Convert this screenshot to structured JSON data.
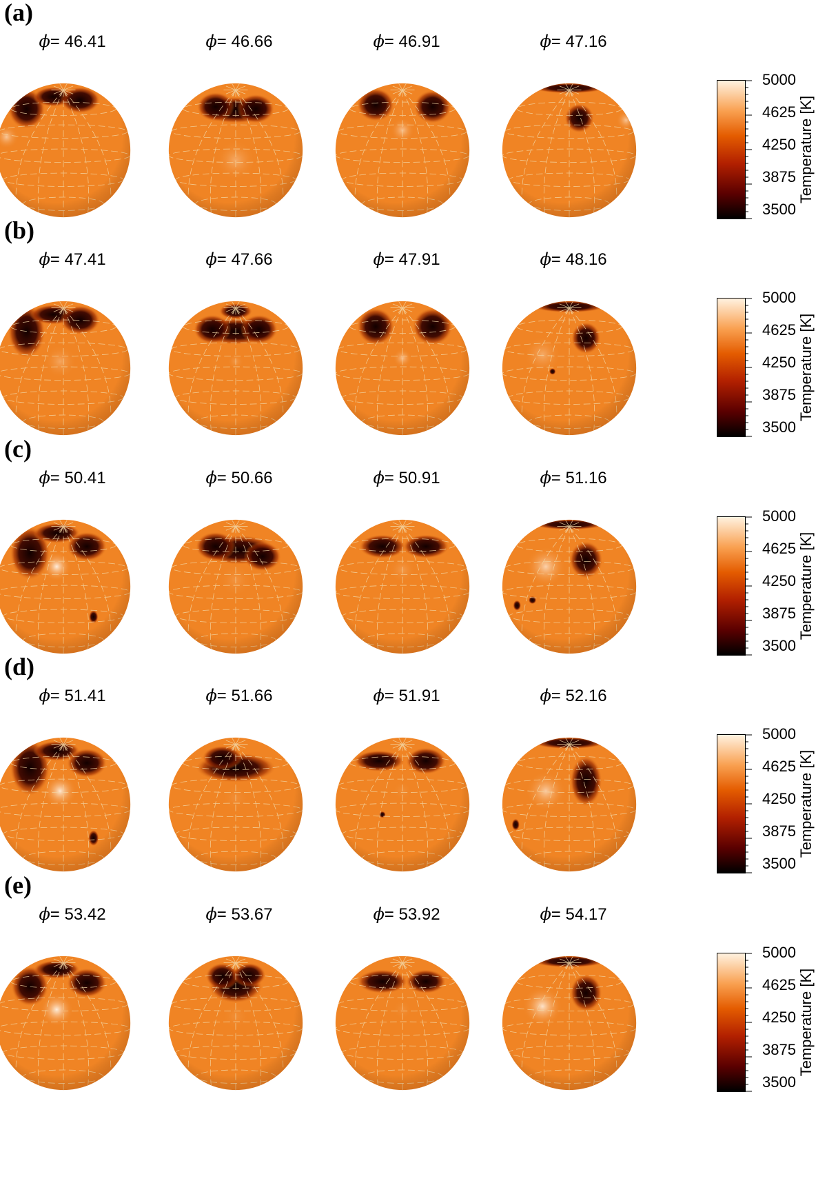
{
  "figure": {
    "panels": [
      {
        "label": "(a)",
        "phases": [
          "46.41",
          "46.66",
          "46.91",
          "47.16"
        ]
      },
      {
        "label": "(b)",
        "phases": [
          "47.41",
          "47.66",
          "47.91",
          "48.16"
        ]
      },
      {
        "label": "(c)",
        "phases": [
          "50.41",
          "50.66",
          "50.91",
          "51.16"
        ]
      },
      {
        "label": "(d)",
        "phases": [
          "51.41",
          "51.66",
          "51.91",
          "52.16"
        ]
      },
      {
        "label": "(e)",
        "phases": [
          "53.42",
          "53.67",
          "53.92",
          "54.17"
        ]
      }
    ],
    "phase_symbol": "ϕ",
    "phase_separator": "= ",
    "colorbar": {
      "title": "Temperature [K]",
      "ticks": [
        "5000",
        "4625",
        "4250",
        "3875",
        "3500"
      ],
      "range": [
        3500,
        5000
      ]
    },
    "colors": {
      "photosphere": "#f08424",
      "spot_cold": "#120000",
      "hot_region": "#fff3e6",
      "grid_line": "#f2d7a6"
    }
  }
}
